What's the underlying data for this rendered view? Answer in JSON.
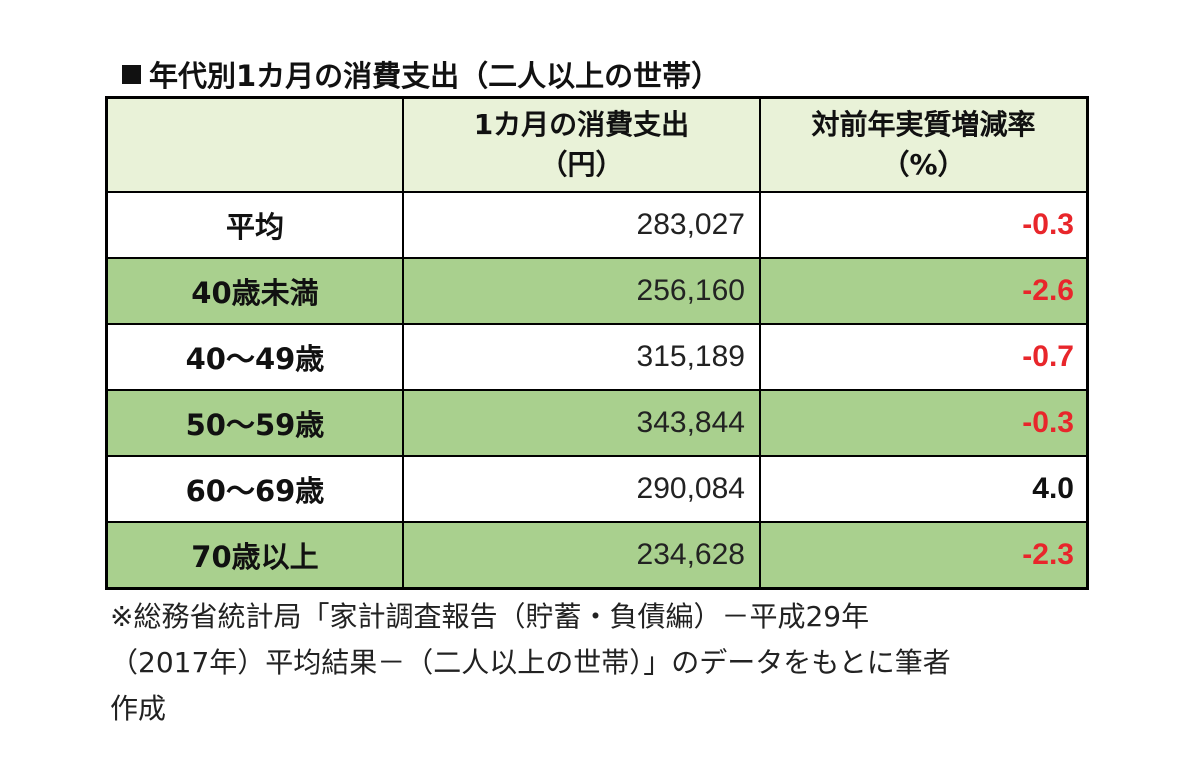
{
  "title": "年代別1カ月の消費支出（二人以上の世帯）",
  "headers": {
    "col1": "",
    "col2_line1": "1カ月の消費支出",
    "col2_line2": "（円）",
    "col3_line1": "対前年実質増減率",
    "col3_line2": "（%）"
  },
  "rows": [
    {
      "label": "平均",
      "spending": "283,027",
      "rate": "-0.3",
      "rate_color": "#e8262b"
    },
    {
      "label": "40歳未満",
      "spending": "256,160",
      "rate": "-2.6",
      "rate_color": "#e8262b"
    },
    {
      "label": "40～49歳",
      "spending": "315,189",
      "rate": "-0.7",
      "rate_color": "#e8262b"
    },
    {
      "label": "50～59歳",
      "spending": "343,844",
      "rate": "-0.3",
      "rate_color": "#e8262b"
    },
    {
      "label": "60～69歳",
      "spending": "290,084",
      "rate": "4.0",
      "rate_color": "#111111"
    },
    {
      "label": "70歳以上",
      "spending": "234,628",
      "rate": "-2.3",
      "rate_color": "#e8262b"
    }
  ],
  "note": {
    "line1": "※総務省統計局「家計調査報告（貯蓄・負債編）－平成29年",
    "line2": "（2017年）平均結果－（二人以上の世帯）」のデータをもとに筆者",
    "line3": "作成"
  },
  "colors": {
    "header_bg": "#e9f2d8",
    "row_green": "#a9d08e",
    "negative": "#e8262b"
  }
}
